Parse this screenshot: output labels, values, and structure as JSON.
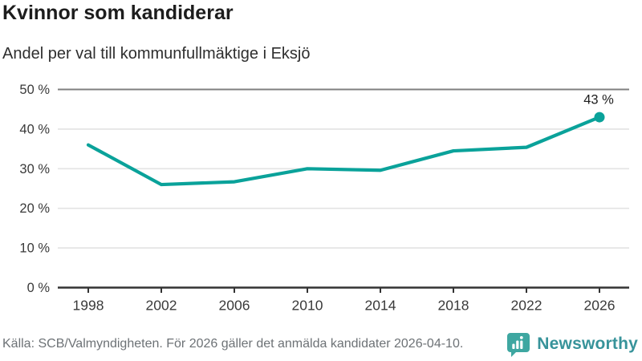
{
  "chart_data": {
    "type": "line",
    "title": "Kvinnor som kandiderar",
    "subtitle": "Andel per val till kommunfullmäktige i Eksjö",
    "categories": [
      "1998",
      "2002",
      "2006",
      "2010",
      "2014",
      "2018",
      "2022",
      "2026"
    ],
    "values": [
      36,
      26,
      26.7,
      30,
      29.6,
      34.5,
      35.4,
      43
    ],
    "ylim": [
      0,
      50
    ],
    "ytick_step": 10,
    "ytick_suffix": " %",
    "xlabel": "",
    "ylabel": "",
    "grid": "horizontal",
    "legend": false,
    "point_label": {
      "category": "2026",
      "text": "43 %"
    }
  },
  "footer": {
    "source": "Källa: SCB/Valmyndigheten. För 2026 gäller det anmälda kandidater 2026-04-10.",
    "brand": "Newsworthy"
  },
  "colors": {
    "line": "#0aa29a",
    "grid": "#e3e3e3",
    "grid_top": "#7f7f7f",
    "axis": "#333333",
    "tick_label": "#3a3a3a",
    "annotation": "#1d1d1d",
    "logo_bubble": "#3ea7a1",
    "logo_text": "#37939a"
  }
}
